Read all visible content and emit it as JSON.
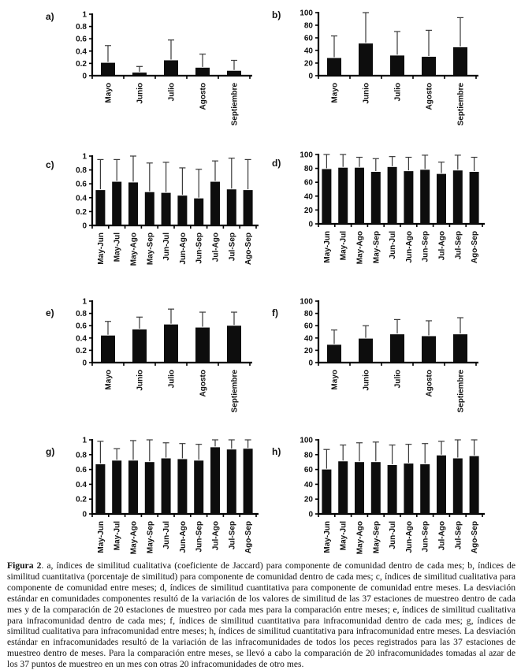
{
  "figure": {
    "caption_label": "Figura 2",
    "caption_text": ". a, índices de similitud cualitativa (coeficiente de Jaccard) para componente de comunidad dentro de cada mes; b, índices de similitud cuantitativa (porcentaje de similitud) para componente de comunidad dentro de cada mes; c, índices de similitud cualitativa para componente de comunidad entre meses; d, índices de similitud cuantitativa para componente de comunidad entre meses. La desviación estándar en comunidades componentes resultó de la variación de los valores de similitud de las 37 estaciones de muestreo dentro de cada mes y de la comparación de 20 estaciones de muestreo por cada mes para la comparación entre meses; e, índices de similitud cualitativa para infracomunidad dentro de cada mes; f, índices de similitud cuantitativa para infracomunidad dentro de cada mes; g, índices de similitud cualitativa para infracomunidad entre meses; h, índices de similitud cuantitativa para infracomunidad entre meses. La desviación estándar en infracomunidades resultó de la variación de las infracomunidades de todos los peces registrados para las 37 estaciones de muestreo dentro de meses. Para la comparación entre meses, se llevó a cabo la comparación de 20 infracomunidades tomadas al azar de los 37 puntos de muestreo en un mes con otras 20 infracomunidades de otro mes."
  },
  "colors": {
    "bar": "#0d0d0d",
    "axis": "#000000",
    "error_bar": "#3a3a3a"
  },
  "chart_data": [
    {
      "type": "bar",
      "panel_label": "a)",
      "categories": [
        "Mayo",
        "Junio",
        "Julio",
        "Agosto",
        "Septiembre"
      ],
      "values": [
        0.21,
        0.05,
        0.25,
        0.13,
        0.08
      ],
      "error_top": [
        0.49,
        0.15,
        0.58,
        0.35,
        0.25
      ],
      "xlabel": "",
      "ylabel": "",
      "ylim": [
        0,
        1
      ],
      "yticks": [
        0,
        0.2,
        0.4,
        0.6,
        0.8,
        1
      ],
      "grid": false,
      "legend": false
    },
    {
      "type": "bar",
      "panel_label": "b)",
      "categories": [
        "Mayo",
        "Junio",
        "Julio",
        "Agosto",
        "Septiembre"
      ],
      "values": [
        28,
        51,
        32,
        30,
        45
      ],
      "error_top": [
        63,
        100,
        70,
        72,
        92
      ],
      "xlabel": "",
      "ylabel": "",
      "ylim": [
        0,
        100
      ],
      "yticks": [
        0,
        20,
        40,
        60,
        80,
        100
      ],
      "grid": false,
      "legend": false
    },
    {
      "type": "bar",
      "panel_label": "c)",
      "categories": [
        "May-Jun",
        "May-Jul",
        "May-Ago",
        "May-Sep",
        "Jun-Jul",
        "Jun-Ago",
        "Jun-Sep",
        "Jul-Ago",
        "Jul-Sep",
        "Ago-Sep"
      ],
      "values": [
        0.51,
        0.63,
        0.62,
        0.48,
        0.47,
        0.43,
        0.39,
        0.63,
        0.52,
        0.51
      ],
      "error_top": [
        0.95,
        0.95,
        1.0,
        0.9,
        0.91,
        0.83,
        0.81,
        0.93,
        0.97,
        0.95
      ],
      "xlabel": "",
      "ylabel": "",
      "ylim": [
        0,
        1
      ],
      "yticks": [
        0,
        0.2,
        0.4,
        0.6,
        0.8,
        1
      ],
      "grid": false,
      "legend": false
    },
    {
      "type": "bar",
      "panel_label": "d)",
      "categories": [
        "May-Jun",
        "May-Jul",
        "May-Ago",
        "May-Sep",
        "Jun-Jul",
        "Jun-Ago",
        "Jun-Sep",
        "Jul-Ago",
        "Jul-Sep",
        "Ago-Sep"
      ],
      "values": [
        79,
        81,
        81,
        75,
        82,
        76,
        78,
        72,
        77,
        75
      ],
      "error_top": [
        100,
        100,
        96,
        94,
        97,
        96,
        99,
        89,
        99,
        96
      ],
      "xlabel": "",
      "ylabel": "",
      "ylim": [
        0,
        100
      ],
      "yticks": [
        0,
        20,
        40,
        60,
        80,
        100
      ],
      "grid": false,
      "legend": false
    },
    {
      "type": "bar",
      "panel_label": "e)",
      "categories": [
        "Mayo",
        "Junio",
        "Julio",
        "Agosto",
        "Septiembre"
      ],
      "values": [
        0.44,
        0.54,
        0.62,
        0.57,
        0.6
      ],
      "error_top": [
        0.67,
        0.74,
        0.87,
        0.82,
        0.82
      ],
      "xlabel": "",
      "ylabel": "",
      "ylim": [
        0,
        1
      ],
      "yticks": [
        0,
        0.2,
        0.4,
        0.6,
        0.8,
        1
      ],
      "grid": false,
      "legend": false
    },
    {
      "type": "bar",
      "panel_label": "f)",
      "categories": [
        "Mayo",
        "Junio",
        "Julio",
        "Agosto",
        "Septiembre"
      ],
      "values": [
        29,
        39,
        46,
        43,
        46
      ],
      "error_top": [
        53,
        60,
        70,
        68,
        73
      ],
      "xlabel": "",
      "ylabel": "",
      "ylim": [
        0,
        100
      ],
      "yticks": [
        0,
        20,
        40,
        60,
        80,
        100
      ],
      "grid": false,
      "legend": false
    },
    {
      "type": "bar",
      "panel_label": "g)",
      "categories": [
        "May-Jun",
        "May-Jul",
        "May-Ago",
        "May-Sep",
        "Jun-Jul",
        "Jun-Ago",
        "Jun-Sep",
        "Jul-Ago",
        "Jul-Sep",
        "Ago-Sep"
      ],
      "values": [
        0.67,
        0.72,
        0.72,
        0.7,
        0.75,
        0.74,
        0.72,
        0.9,
        0.87,
        0.88
      ],
      "error_top": [
        0.98,
        0.88,
        0.99,
        1.0,
        0.96,
        0.95,
        0.94,
        1.0,
        1.0,
        1.0
      ],
      "xlabel": "",
      "ylabel": "",
      "ylim": [
        0,
        1
      ],
      "yticks": [
        0,
        0.2,
        0.4,
        0.6,
        0.8,
        1
      ],
      "grid": false,
      "legend": false
    },
    {
      "type": "bar",
      "panel_label": "h)",
      "categories": [
        "May-Jun",
        "May-Jul",
        "May-Ago",
        "May-Sep",
        "Jun-Jul",
        "Jun-Ago",
        "Jun-Sep",
        "Jul-Ago",
        "Jul-Sep",
        "Ago-Sep"
      ],
      "values": [
        60,
        71,
        70,
        70,
        66,
        68,
        67,
        79,
        75,
        78
      ],
      "error_top": [
        87,
        93,
        96,
        97,
        93,
        94,
        95,
        98,
        100,
        100
      ],
      "xlabel": "",
      "ylabel": "",
      "ylim": [
        0,
        100
      ],
      "yticks": [
        0,
        20,
        40,
        60,
        80,
        100
      ],
      "grid": false,
      "legend": false
    }
  ]
}
